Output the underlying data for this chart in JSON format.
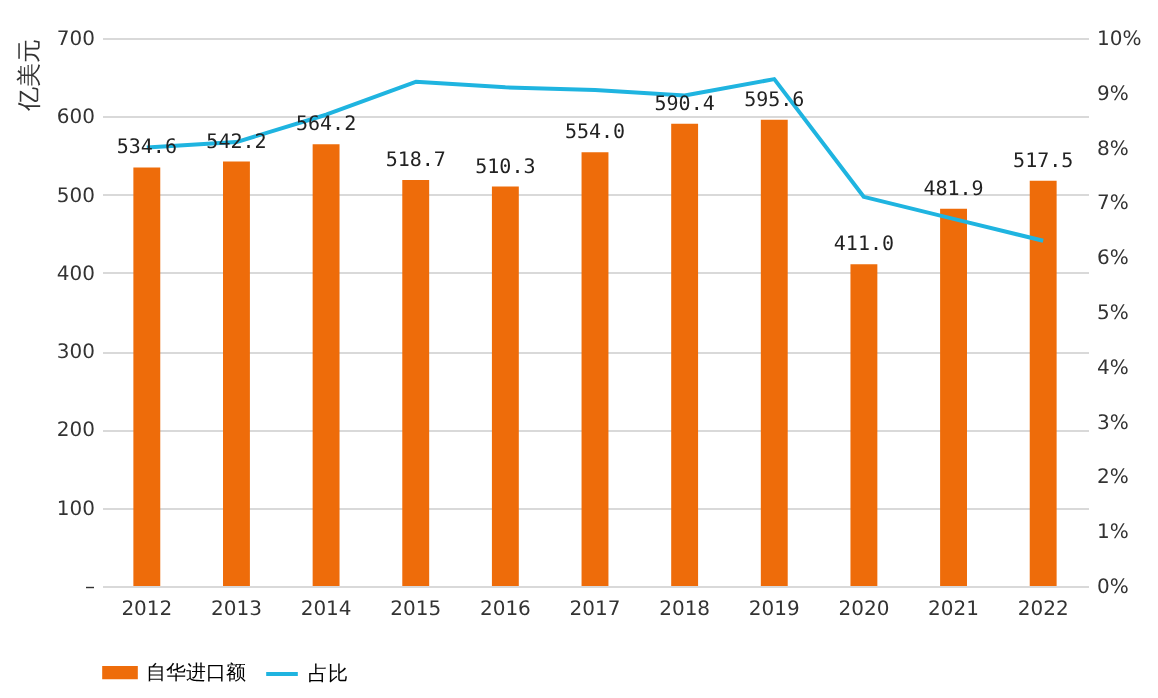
{
  "chart_data": {
    "type": "bar",
    "ylabel": "亿美元",
    "categories": [
      "2012",
      "2013",
      "2014",
      "2015",
      "2016",
      "2017",
      "2018",
      "2019",
      "2020",
      "2021",
      "2022"
    ],
    "series": [
      {
        "name": "自华进口额",
        "color": "#ee6c0a",
        "values": [
          534.6,
          542.2,
          564.2,
          518.7,
          510.3,
          554.0,
          590.4,
          595.6,
          411.0,
          481.9,
          517.5
        ],
        "value_labels": [
          "534.6",
          "542.2",
          "564.2",
          "518.7",
          "510.3",
          "554.0",
          "590.4",
          "595.6",
          "411.0",
          "481.9",
          "517.5"
        ]
      },
      {
        "name": "占比",
        "type": "line",
        "axis": "y2",
        "color": "#1fb4e0",
        "values": [
          8.0,
          8.1,
          8.6,
          9.2,
          9.1,
          9.05,
          8.95,
          9.25,
          7.1,
          6.7,
          6.3
        ]
      }
    ],
    "ylim": [
      0,
      700
    ],
    "yticks": [
      {
        "value": 0,
        "label": "–"
      },
      100,
      200,
      300,
      400,
      500,
      600,
      700
    ],
    "y2lim": [
      0,
      10
    ],
    "y2ticks": [
      {
        "value": 0,
        "label": "0%"
      },
      {
        "value": 1,
        "label": "1%"
      },
      {
        "value": 2,
        "label": "2%"
      },
      {
        "value": 3,
        "label": "3%"
      },
      {
        "value": 4,
        "label": "4%"
      },
      {
        "value": 5,
        "label": "5%"
      },
      {
        "value": 6,
        "label": "6%"
      },
      {
        "value": 7,
        "label": "7%"
      },
      {
        "value": 8,
        "label": "8%"
      },
      {
        "value": 9,
        "label": "9%"
      },
      {
        "value": 10,
        "label": "10%"
      }
    ],
    "grid": "y",
    "legend": "bottom",
    "line_style": "solid"
  }
}
